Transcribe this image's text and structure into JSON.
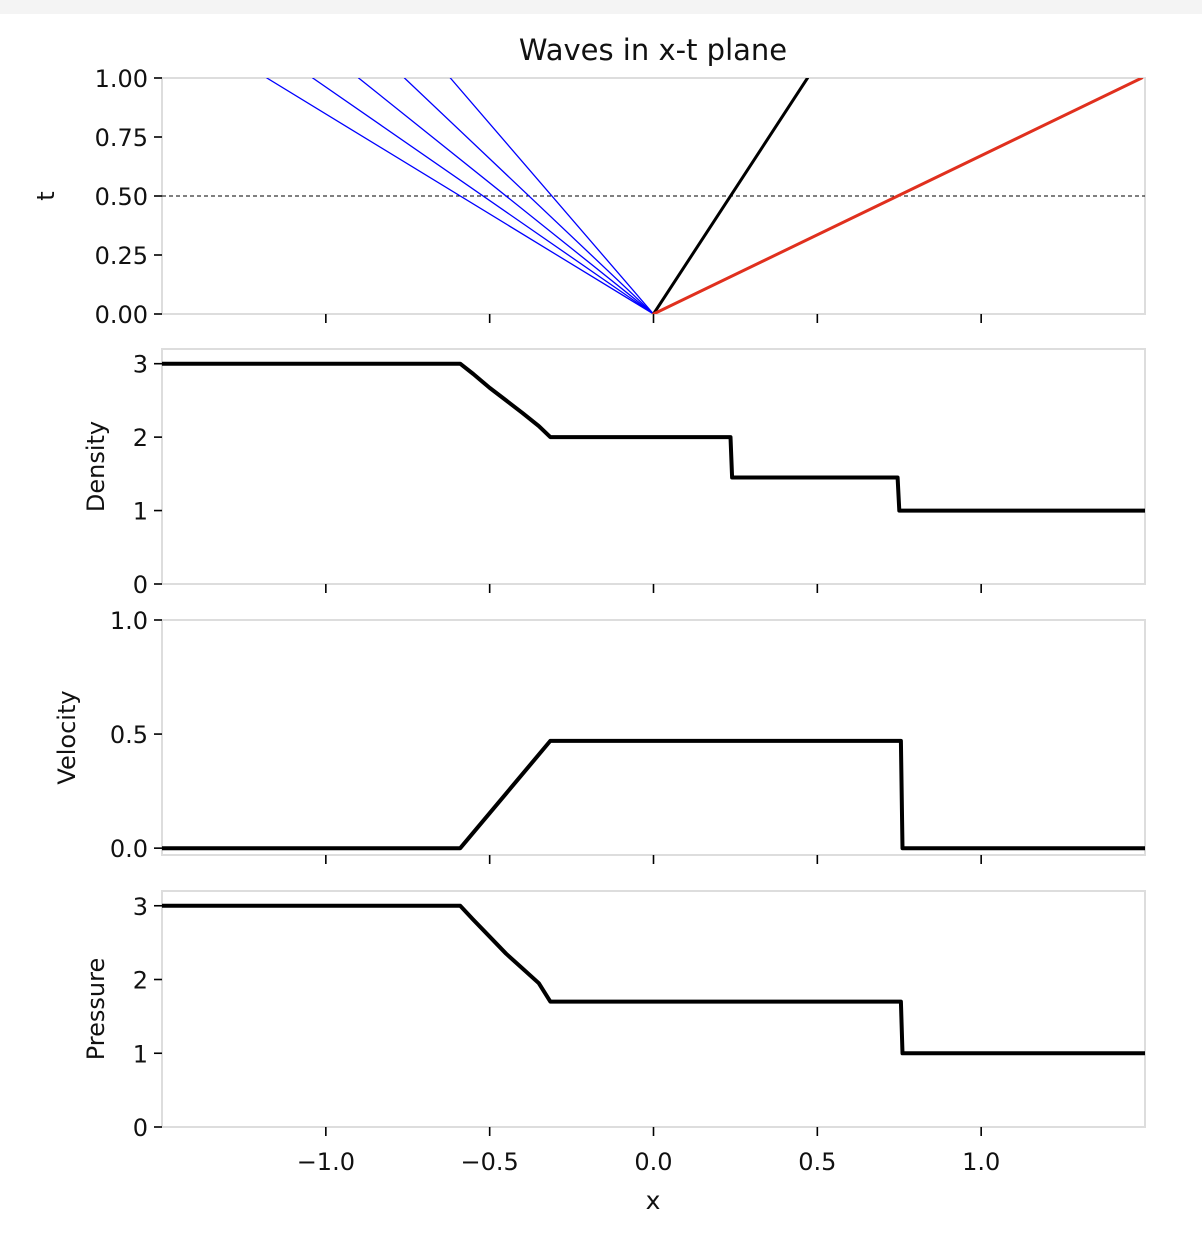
{
  "figure": {
    "x_label": "x",
    "x_ticks": [
      {
        "value": -1.0,
        "label": "−1.0"
      },
      {
        "value": -0.5,
        "label": "−0.5"
      },
      {
        "value": 0.0,
        "label": "0.0"
      },
      {
        "value": 0.5,
        "label": "0.5"
      },
      {
        "value": 1.0,
        "label": "1.0"
      }
    ],
    "colors": {
      "rarefaction": "#0000ff",
      "contact": "#000000",
      "shock": "#e0301e",
      "curve": "#000000",
      "frame": "#dddddd",
      "dashed": "#000000"
    }
  },
  "chart_data": [
    {
      "type": "line",
      "title": "Waves in x-t plane",
      "xlabel": "x",
      "ylabel": "t",
      "xlim": [
        -1.5,
        1.5
      ],
      "ylim": [
        0,
        1
      ],
      "y_ticks": [
        {
          "value": 0,
          "label": "0.00"
        },
        {
          "value": 0.25,
          "label": "0.25"
        },
        {
          "value": 0.5,
          "label": "0.50"
        },
        {
          "value": 0.75,
          "label": "0.75"
        },
        {
          "value": 1.0,
          "label": "1.00"
        }
      ],
      "dashed_line_t": 0.5,
      "series": [
        {
          "role": "rarefaction",
          "x": [
            0,
            -1.18
          ],
          "y": [
            0,
            1
          ]
        },
        {
          "role": "rarefaction",
          "x": [
            0,
            -1.04
          ],
          "y": [
            0,
            1
          ]
        },
        {
          "role": "rarefaction",
          "x": [
            0,
            -0.9
          ],
          "y": [
            0,
            1
          ]
        },
        {
          "role": "rarefaction",
          "x": [
            0,
            -0.76
          ],
          "y": [
            0,
            1
          ]
        },
        {
          "role": "rarefaction",
          "x": [
            0,
            -0.62
          ],
          "y": [
            0,
            1
          ]
        },
        {
          "role": "contact",
          "x": [
            0,
            0.47
          ],
          "y": [
            0,
            1
          ]
        },
        {
          "role": "shock",
          "x": [
            0,
            1.49
          ],
          "y": [
            0,
            1
          ]
        }
      ]
    },
    {
      "type": "line",
      "ylabel": "Density",
      "xlim": [
        -1.5,
        1.5
      ],
      "ylim": [
        0,
        3.2
      ],
      "y_ticks": [
        {
          "value": 0,
          "label": "0"
        },
        {
          "value": 1,
          "label": "1"
        },
        {
          "value": 2,
          "label": "2"
        },
        {
          "value": 3,
          "label": "3"
        }
      ],
      "x": [
        -1.5,
        -0.59,
        -0.55,
        -0.5,
        -0.45,
        -0.4,
        -0.35,
        -0.315,
        0.235,
        0.24,
        0.745,
        0.75,
        1.5
      ],
      "y": [
        3,
        3,
        2.86,
        2.67,
        2.5,
        2.33,
        2.15,
        2.0,
        2.0,
        1.45,
        1.45,
        1.0,
        1.0
      ]
    },
    {
      "type": "line",
      "ylabel": "Velocity",
      "xlim": [
        -1.5,
        1.5
      ],
      "ylim": [
        -0.03,
        1.0
      ],
      "y_ticks": [
        {
          "value": 0,
          "label": "0.0"
        },
        {
          "value": 0.5,
          "label": "0.5"
        },
        {
          "value": 1.0,
          "label": "1.0"
        }
      ],
      "x": [
        -1.5,
        -0.59,
        -0.315,
        0.755,
        0.76,
        1.5
      ],
      "y": [
        0,
        0,
        0.47,
        0.47,
        0,
        0
      ]
    },
    {
      "type": "line",
      "ylabel": "Pressure",
      "xlabel": "x",
      "xlim": [
        -1.5,
        1.5
      ],
      "ylim": [
        0,
        3.2
      ],
      "y_ticks": [
        {
          "value": 0,
          "label": "0"
        },
        {
          "value": 1,
          "label": "1"
        },
        {
          "value": 2,
          "label": "2"
        },
        {
          "value": 3,
          "label": "3"
        }
      ],
      "x": [
        -1.5,
        -0.59,
        -0.55,
        -0.5,
        -0.45,
        -0.4,
        -0.35,
        -0.315,
        0.755,
        0.76,
        1.5
      ],
      "y": [
        3,
        3,
        2.81,
        2.58,
        2.35,
        2.15,
        1.95,
        1.7,
        1.7,
        1.0,
        1.0
      ]
    }
  ]
}
